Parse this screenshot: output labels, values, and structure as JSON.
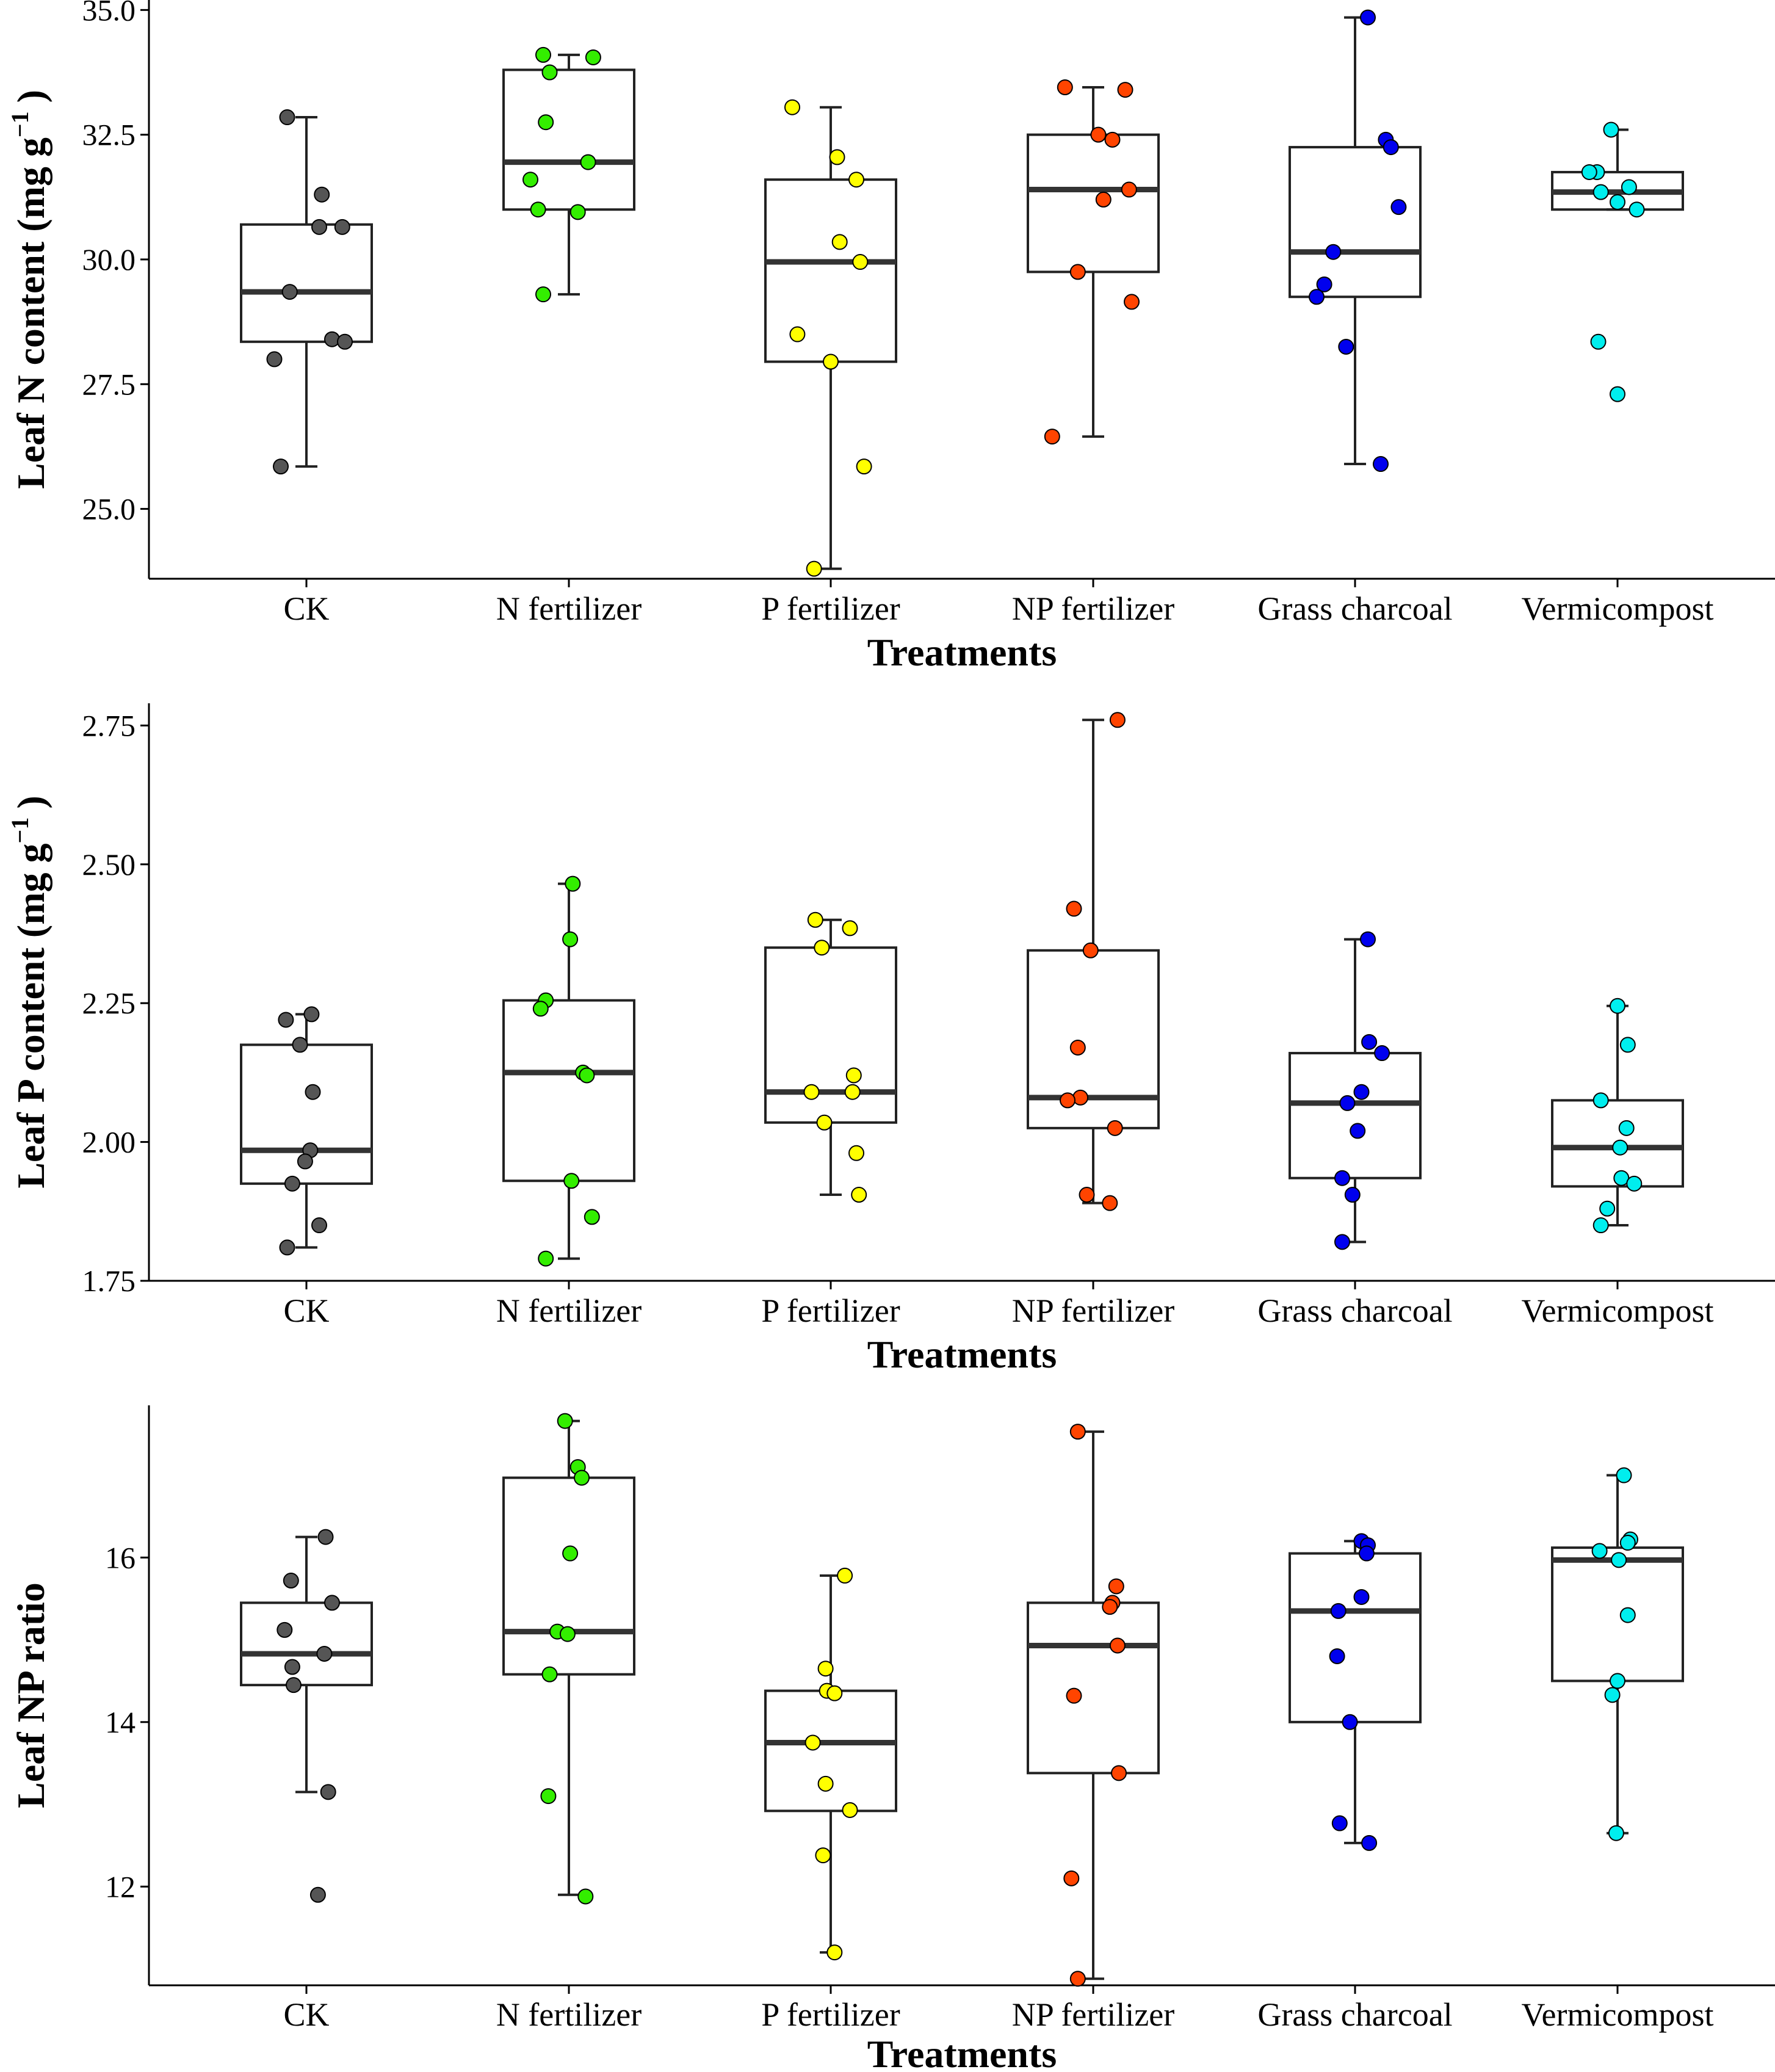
{
  "chart_data": [
    {
      "type": "boxplot",
      "panel": "top",
      "ylabel": "Leaf N content (mg g",
      "ylabel_sup": "−1",
      "ylabel_close": ")",
      "xlabel": "Treatments",
      "ylim": [
        23.6,
        35.2
      ],
      "yticks": [
        25.0,
        27.5,
        30.0,
        32.5,
        35.0
      ],
      "ytick_labels": [
        "25.0",
        "27.5",
        "30.0",
        "32.5",
        "35.0"
      ],
      "categories": [
        "CK",
        "N fertilizer",
        "P fertilizer",
        "NP fertilizer",
        "Grass charcoal",
        "Vermicompost"
      ],
      "colors": [
        "#555555",
        "#33ee00",
        "#ffff00",
        "#ff4400",
        "#0000ee",
        "#00eeee"
      ],
      "boxes": [
        {
          "q1": 28.35,
          "median": 29.35,
          "q3": 30.7,
          "whisker_low": 25.85,
          "whisker_high": 32.85
        },
        {
          "q1": 31.0,
          "median": 31.95,
          "q3": 33.8,
          "whisker_low": 29.3,
          "whisker_high": 34.1
        },
        {
          "q1": 27.95,
          "median": 29.95,
          "q3": 31.6,
          "whisker_low": 23.8,
          "whisker_high": 33.05
        },
        {
          "q1": 29.75,
          "median": 31.4,
          "q3": 32.5,
          "whisker_low": 26.45,
          "whisker_high": 33.45
        },
        {
          "q1": 29.25,
          "median": 30.15,
          "q3": 32.25,
          "whisker_low": 25.9,
          "whisker_high": 34.85
        },
        {
          "q1": 31.0,
          "median": 31.35,
          "q3": 31.75,
          "whisker_low": 31.0,
          "whisker_high": 32.6
        }
      ],
      "points": [
        [
          32.85,
          31.3,
          30.65,
          30.65,
          29.35,
          28.4,
          28.35,
          28.0,
          25.85
        ],
        [
          34.1,
          34.05,
          33.75,
          32.75,
          31.95,
          31.6,
          31.0,
          30.95,
          29.3
        ],
        [
          33.05,
          32.05,
          31.6,
          30.35,
          29.95,
          28.5,
          27.95,
          25.85,
          23.8
        ],
        [
          33.45,
          33.4,
          32.5,
          32.4,
          31.4,
          31.2,
          29.75,
          29.15,
          26.45
        ],
        [
          34.85,
          32.4,
          32.25,
          31.05,
          30.15,
          29.5,
          29.25,
          28.25,
          25.9
        ],
        [
          32.6,
          31.75,
          31.75,
          31.45,
          31.35,
          31.15,
          31.0,
          28.35,
          27.3
        ]
      ],
      "jitter": [
        [
          -0.15,
          0.12,
          0.1,
          0.28,
          -0.13,
          0.2,
          0.3,
          -0.25,
          -0.2
        ],
        [
          -0.2,
          0.19,
          -0.15,
          -0.18,
          0.15,
          -0.3,
          -0.24,
          0.07,
          -0.2
        ],
        [
          -0.3,
          0.05,
          0.2,
          0.07,
          0.23,
          -0.26,
          0.0,
          0.26,
          -0.13
        ],
        [
          -0.22,
          0.25,
          0.04,
          0.15,
          0.28,
          0.08,
          -0.12,
          0.3,
          -0.32
        ],
        [
          0.1,
          0.24,
          0.28,
          0.34,
          -0.17,
          -0.24,
          -0.3,
          -0.07,
          0.2
        ],
        [
          -0.05,
          -0.16,
          -0.22,
          0.09,
          -0.13,
          0.0,
          0.15,
          -0.15,
          0.0
        ]
      ]
    },
    {
      "type": "boxplot",
      "panel": "middle",
      "ylabel": "Leaf P content (mg g",
      "ylabel_sup": "−1",
      "ylabel_close": ")",
      "xlabel": "Treatments",
      "ylim": [
        1.75,
        2.79
      ],
      "yticks": [
        1.75,
        2.0,
        2.25,
        2.5,
        2.75
      ],
      "ytick_labels": [
        "1.75",
        "2.00",
        "2.25",
        "2.50",
        "2.75"
      ],
      "categories": [
        "CK",
        "N fertilizer",
        "P fertilizer",
        "NP fertilizer",
        "Grass charcoal",
        "Vermicompost"
      ],
      "colors": [
        "#555555",
        "#33ee00",
        "#ffff00",
        "#ff4400",
        "#0000ee",
        "#00eeee"
      ],
      "boxes": [
        {
          "q1": 1.925,
          "median": 1.985,
          "q3": 2.175,
          "whisker_low": 1.81,
          "whisker_high": 2.23
        },
        {
          "q1": 1.93,
          "median": 2.125,
          "q3": 2.255,
          "whisker_low": 1.79,
          "whisker_high": 2.465
        },
        {
          "q1": 2.035,
          "median": 2.09,
          "q3": 2.35,
          "whisker_low": 1.905,
          "whisker_high": 2.4
        },
        {
          "q1": 2.025,
          "median": 2.08,
          "q3": 2.345,
          "whisker_low": 1.89,
          "whisker_high": 2.76
        },
        {
          "q1": 1.935,
          "median": 2.07,
          "q3": 2.16,
          "whisker_low": 1.82,
          "whisker_high": 2.365
        },
        {
          "q1": 1.92,
          "median": 1.99,
          "q3": 2.075,
          "whisker_low": 1.85,
          "whisker_high": 2.245
        }
      ],
      "points": [
        [
          2.23,
          2.22,
          2.175,
          2.09,
          1.985,
          1.965,
          1.925,
          1.85,
          1.81
        ],
        [
          2.465,
          2.365,
          2.255,
          2.24,
          2.125,
          2.12,
          1.93,
          1.865,
          1.79
        ],
        [
          2.4,
          2.385,
          2.35,
          2.12,
          2.09,
          2.09,
          2.035,
          1.98,
          1.905
        ],
        [
          2.76,
          2.42,
          2.345,
          2.17,
          2.08,
          2.075,
          2.025,
          1.905,
          1.89
        ],
        [
          2.365,
          2.18,
          2.16,
          2.09,
          2.07,
          2.02,
          1.935,
          1.905,
          1.82
        ],
        [
          2.245,
          2.175,
          2.075,
          2.025,
          1.99,
          1.935,
          1.925,
          1.88,
          1.85
        ]
      ],
      "jitter": [
        [
          0.04,
          -0.16,
          -0.05,
          0.05,
          0.03,
          -0.01,
          -0.11,
          0.1,
          -0.15
        ],
        [
          0.03,
          0.01,
          -0.18,
          -0.22,
          0.11,
          0.14,
          0.02,
          0.18,
          -0.18
        ],
        [
          -0.12,
          0.15,
          -0.07,
          0.18,
          0.17,
          -0.15,
          -0.05,
          0.2,
          0.22
        ],
        [
          0.19,
          -0.15,
          -0.02,
          -0.12,
          -0.1,
          -0.2,
          0.17,
          -0.05,
          0.13
        ],
        [
          0.1,
          0.11,
          0.21,
          0.05,
          -0.06,
          0.02,
          -0.1,
          -0.02,
          -0.1
        ],
        [
          0.0,
          0.08,
          -0.13,
          0.07,
          0.02,
          0.03,
          0.13,
          -0.08,
          -0.13
        ]
      ]
    },
    {
      "type": "boxplot",
      "panel": "bottom",
      "ylabel": "Leaf NP ratio",
      "xlabel": "Treatments",
      "ylim": [
        10.8,
        17.85
      ],
      "yticks": [
        12,
        14,
        16
      ],
      "ytick_labels": [
        "12",
        "14",
        "16"
      ],
      "categories": [
        "CK",
        "N fertilizer",
        "P fertilizer",
        "NP fertilizer",
        "Grass charcoal",
        "Vermicompost"
      ],
      "colors": [
        "#555555",
        "#33ee00",
        "#ffff00",
        "#ff4400",
        "#0000ee",
        "#00eeee"
      ],
      "boxes": [
        {
          "q1": 14.45,
          "median": 14.83,
          "q3": 15.45,
          "whisker_low": 13.15,
          "whisker_high": 16.25
        },
        {
          "q1": 14.58,
          "median": 15.1,
          "q3": 16.97,
          "whisker_low": 11.9,
          "whisker_high": 17.66
        },
        {
          "q1": 12.92,
          "median": 13.75,
          "q3": 14.38,
          "whisker_low": 11.2,
          "whisker_high": 15.78
        },
        {
          "q1": 13.38,
          "median": 14.93,
          "q3": 15.45,
          "whisker_low": 10.88,
          "whisker_high": 17.53
        },
        {
          "q1": 14.0,
          "median": 15.35,
          "q3": 16.05,
          "whisker_low": 12.53,
          "whisker_high": 16.2
        },
        {
          "q1": 14.5,
          "median": 15.97,
          "q3": 16.12,
          "whisker_low": 12.65,
          "whisker_high": 17.0
        }
      ],
      "points": [
        [
          16.25,
          15.72,
          15.45,
          15.12,
          14.83,
          14.67,
          14.45,
          13.15,
          11.9
        ],
        [
          17.66,
          17.1,
          16.97,
          16.05,
          15.1,
          15.07,
          14.58,
          13.1,
          11.88
        ],
        [
          15.78,
          14.65,
          14.38,
          14.35,
          13.75,
          13.25,
          12.93,
          12.38,
          11.2
        ],
        [
          17.53,
          15.65,
          15.45,
          15.4,
          14.93,
          14.32,
          13.38,
          12.1,
          10.88
        ],
        [
          16.2,
          16.15,
          16.05,
          15.52,
          15.35,
          14.8,
          14.0,
          12.77,
          12.53
        ],
        [
          17.0,
          16.22,
          16.18,
          16.08,
          15.97,
          15.3,
          14.5,
          14.33,
          12.65
        ]
      ],
      "jitter": [
        [
          0.15,
          -0.12,
          0.2,
          -0.17,
          0.14,
          -0.11,
          -0.1,
          0.17,
          0.09
        ],
        [
          -0.03,
          0.07,
          0.1,
          0.01,
          -0.09,
          -0.01,
          -0.15,
          -0.16,
          0.13
        ],
        [
          0.11,
          -0.04,
          -0.03,
          0.03,
          -0.14,
          -0.04,
          0.15,
          -0.06,
          0.03
        ],
        [
          -0.12,
          0.18,
          0.15,
          0.13,
          0.19,
          -0.15,
          0.2,
          -0.17,
          -0.12
        ],
        [
          0.05,
          0.1,
          0.09,
          0.05,
          -0.13,
          -0.14,
          -0.04,
          -0.12,
          0.11
        ],
        [
          0.05,
          0.1,
          0.08,
          -0.14,
          0.01,
          0.08,
          0.0,
          -0.04,
          -0.01
        ]
      ]
    }
  ]
}
